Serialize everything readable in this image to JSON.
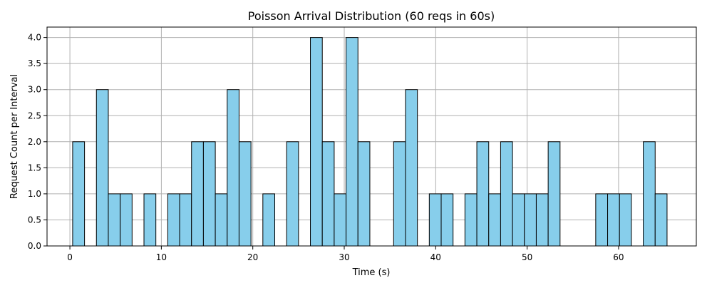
{
  "chart_data": {
    "type": "bar",
    "title": "Poisson Arrival Distribution (60 reqs in 60s)",
    "xlabel": "Time (s)",
    "ylabel": "Request Count per Interval",
    "xlim": [
      -2.5,
      68.5
    ],
    "ylim": [
      0,
      4.2
    ],
    "x_ticks": [
      0,
      10,
      20,
      30,
      40,
      50,
      60
    ],
    "x_tick_labels": [
      "0",
      "10",
      "20",
      "30",
      "40",
      "50",
      "60"
    ],
    "y_ticks": [
      0,
      0.5,
      1,
      1.5,
      2,
      2.5,
      3,
      3.5,
      4
    ],
    "y_tick_labels": [
      "0.0",
      "0.5",
      "1.0",
      "1.5",
      "2.0",
      "2.5",
      "3.0",
      "3.5",
      "4.0"
    ],
    "grid": true,
    "bar_color": "#87CEEB",
    "edge_color": "#000000",
    "bins": [
      {
        "start": 0.3,
        "end": 1.6,
        "count": 2
      },
      {
        "start": 2.9,
        "end": 4.2,
        "count": 3
      },
      {
        "start": 4.2,
        "end": 5.5,
        "count": 1
      },
      {
        "start": 5.5,
        "end": 6.8,
        "count": 1
      },
      {
        "start": 8.1,
        "end": 9.4,
        "count": 1
      },
      {
        "start": 10.7,
        "end": 12.0,
        "count": 1
      },
      {
        "start": 12.0,
        "end": 13.3,
        "count": 1
      },
      {
        "start": 13.3,
        "end": 14.6,
        "count": 2
      },
      {
        "start": 14.6,
        "end": 15.9,
        "count": 2
      },
      {
        "start": 15.9,
        "end": 17.2,
        "count": 1
      },
      {
        "start": 17.2,
        "end": 18.5,
        "count": 3
      },
      {
        "start": 18.5,
        "end": 19.8,
        "count": 2
      },
      {
        "start": 21.1,
        "end": 22.4,
        "count": 1
      },
      {
        "start": 23.7,
        "end": 25.0,
        "count": 2
      },
      {
        "start": 26.3,
        "end": 27.6,
        "count": 4
      },
      {
        "start": 27.6,
        "end": 28.9,
        "count": 2
      },
      {
        "start": 28.9,
        "end": 30.2,
        "count": 1
      },
      {
        "start": 30.2,
        "end": 31.5,
        "count": 4
      },
      {
        "start": 31.5,
        "end": 32.8,
        "count": 2
      },
      {
        "start": 35.4,
        "end": 36.7,
        "count": 2
      },
      {
        "start": 36.7,
        "end": 38.0,
        "count": 3
      },
      {
        "start": 39.3,
        "end": 40.6,
        "count": 1
      },
      {
        "start": 40.6,
        "end": 41.9,
        "count": 1
      },
      {
        "start": 43.2,
        "end": 44.5,
        "count": 1
      },
      {
        "start": 44.5,
        "end": 45.8,
        "count": 2
      },
      {
        "start": 45.8,
        "end": 47.1,
        "count": 1
      },
      {
        "start": 47.1,
        "end": 48.4,
        "count": 2
      },
      {
        "start": 48.4,
        "end": 49.7,
        "count": 1
      },
      {
        "start": 49.7,
        "end": 51.0,
        "count": 1
      },
      {
        "start": 51.0,
        "end": 52.3,
        "count": 1
      },
      {
        "start": 52.3,
        "end": 53.6,
        "count": 2
      },
      {
        "start": 57.5,
        "end": 58.8,
        "count": 1
      },
      {
        "start": 58.8,
        "end": 60.1,
        "count": 1
      },
      {
        "start": 60.1,
        "end": 61.4,
        "count": 1
      },
      {
        "start": 62.7,
        "end": 64.0,
        "count": 2
      },
      {
        "start": 64.0,
        "end": 65.3,
        "count": 1
      }
    ]
  }
}
